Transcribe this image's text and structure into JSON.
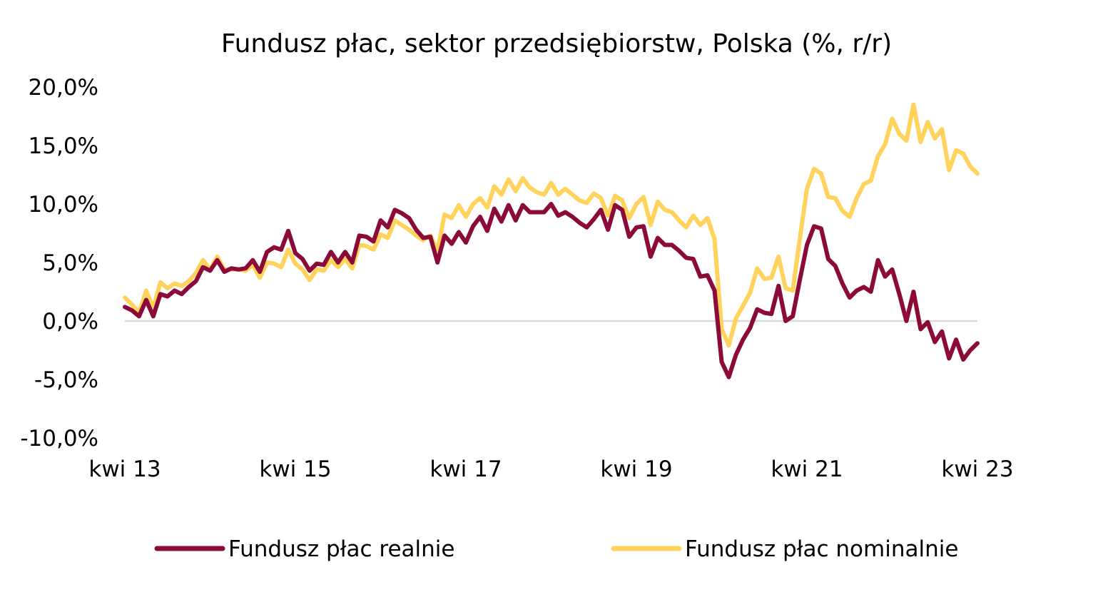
{
  "chart_data": {
    "type": "line",
    "title": "Fundusz płac, sektor przedsiębiorstw, Polska (%, r/r)",
    "xlabel": "",
    "ylabel": "",
    "ylim": [
      -10,
      20
    ],
    "y_ticks": [
      20,
      15,
      10,
      5,
      0,
      -5,
      -10
    ],
    "y_tick_labels": [
      "20,0%",
      "15,0%",
      "10,0%",
      "5,0%",
      "0,0%",
      "-5,0%",
      "-10,0%"
    ],
    "x_start": "2013-04",
    "x_ticks": [
      "2013-04",
      "2015-04",
      "2017-04",
      "2019-04",
      "2021-04",
      "2023-04"
    ],
    "x_tick_labels": [
      "kwi 13",
      "kwi 15",
      "kwi 17",
      "kwi 19",
      "kwi 21",
      "kwi 23"
    ],
    "grid": false,
    "zero_line": true,
    "legend_position": "bottom",
    "series": [
      {
        "name": "Fundusz płac realnie",
        "color": "#8B0A3A",
        "values": [
          1.2,
          0.9,
          0.4,
          1.8,
          0.4,
          2.3,
          2.1,
          2.6,
          2.3,
          2.9,
          3.4,
          4.6,
          4.3,
          5.2,
          4.2,
          4.5,
          4.4,
          4.5,
          5.2,
          4.2,
          5.9,
          6.3,
          6.1,
          7.7,
          5.8,
          5.3,
          4.3,
          4.9,
          4.8,
          5.9,
          5.0,
          5.9,
          5.0,
          7.3,
          7.2,
          6.8,
          8.6,
          8.0,
          9.5,
          9.2,
          8.8,
          7.8,
          7.1,
          7.2,
          5.0,
          7.3,
          6.6,
          7.6,
          6.7,
          8.1,
          8.9,
          7.7,
          9.6,
          8.5,
          9.9,
          8.6,
          9.9,
          9.3,
          9.3,
          9.3,
          10.0,
          9.0,
          9.3,
          8.9,
          8.4,
          8.0,
          8.7,
          9.5,
          7.8,
          9.9,
          9.5,
          7.2,
          8.0,
          8.1,
          5.5,
          7.1,
          6.5,
          6.5,
          6.0,
          5.4,
          5.3,
          3.8,
          3.9,
          2.6,
          -3.5,
          -4.8,
          -2.9,
          -1.6,
          -0.6,
          1.0,
          0.7,
          0.6,
          3.0,
          0.0,
          0.4,
          3.5,
          6.5,
          8.1,
          7.9,
          5.3,
          4.7,
          3.2,
          2.0,
          2.6,
          2.9,
          2.5,
          5.2,
          3.8,
          4.4,
          2.3,
          0.0,
          2.5,
          -0.7,
          -0.1,
          -1.8,
          -0.9,
          -3.2,
          -1.6,
          -3.3,
          -2.5,
          -1.9
        ]
      },
      {
        "name": "Fundusz płac nominalnie",
        "color": "#FFD35C",
        "values": [
          2.0,
          1.4,
          0.7,
          2.6,
          1.1,
          3.3,
          2.8,
          3.2,
          3.0,
          3.4,
          4.1,
          5.2,
          4.4,
          5.5,
          4.4,
          4.4,
          4.4,
          4.3,
          4.8,
          3.7,
          5.0,
          4.9,
          4.6,
          6.1,
          4.9,
          4.4,
          3.5,
          4.4,
          4.3,
          5.2,
          4.6,
          5.3,
          4.5,
          6.5,
          6.4,
          6.1,
          7.4,
          7.1,
          8.6,
          8.2,
          7.8,
          7.3,
          6.9,
          7.3,
          6.0,
          9.1,
          8.8,
          9.9,
          8.9,
          10.0,
          10.5,
          9.7,
          11.5,
          10.8,
          12.1,
          11.1,
          12.2,
          11.4,
          11.0,
          10.8,
          11.8,
          10.8,
          11.3,
          10.8,
          10.3,
          10.1,
          10.9,
          10.5,
          9.0,
          10.7,
          10.3,
          8.8,
          10.0,
          10.6,
          8.2,
          10.2,
          9.5,
          9.3,
          8.6,
          8.0,
          9.0,
          8.2,
          8.8,
          7.0,
          -0.7,
          -2.1,
          0.2,
          1.3,
          2.4,
          4.5,
          3.6,
          3.7,
          5.5,
          2.8,
          2.6,
          7.0,
          11.3,
          13.0,
          12.6,
          10.6,
          10.5,
          9.4,
          8.9,
          10.5,
          11.7,
          12.0,
          14.1,
          15.1,
          17.3,
          16.0,
          15.4,
          18.5,
          15.3,
          17.0,
          15.6,
          16.4,
          12.9,
          14.6,
          14.3,
          13.2,
          12.6
        ]
      }
    ]
  }
}
